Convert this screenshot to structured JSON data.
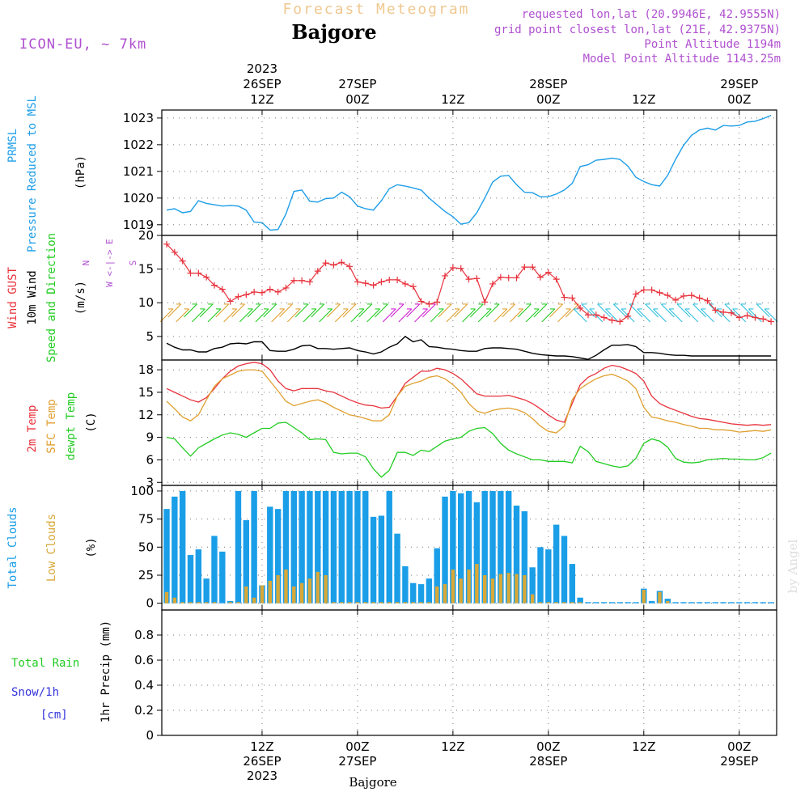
{
  "header": {
    "title": "Forecast Meteogram",
    "place": "Bajgore",
    "model": "ICON-EU, ~ 7km",
    "requested": "requested lon,lat (20.9946E, 42.9555N)",
    "grid_point": "grid point closest lon,lat (21E, 42.9375N)",
    "point_alt": "Point Altitude 1194m",
    "model_alt": "Model Point Altitude 1143.25m",
    "footer_place": "Bajgore",
    "watermark": "by Angel"
  },
  "colors": {
    "pressure": "#1e9ee8",
    "gust": "#e8323c",
    "wind": "#000000",
    "temp2m": "#e8323c",
    "sfc_temp": "#e0a030",
    "dewpoint": "#22cc22",
    "total_clouds": "#1a9ee8",
    "low_clouds": "#d8a838",
    "rain": "#22cc22",
    "snow": "#3333dd",
    "title": "#f0c890",
    "meta": "#b050d0"
  },
  "time_axis": {
    "top_labels": [
      {
        "t": 12,
        "lines": [
          "2023",
          "26SEP",
          "12Z"
        ]
      },
      {
        "t": 24,
        "lines": [
          "27SEP",
          "00Z"
        ]
      },
      {
        "t": 36,
        "lines": [
          "12Z"
        ]
      },
      {
        "t": 48,
        "lines": [
          "28SEP",
          "00Z"
        ]
      },
      {
        "t": 60,
        "lines": [
          "12Z"
        ]
      },
      {
        "t": 72,
        "lines": [
          "29SEP",
          "00Z"
        ]
      }
    ],
    "bottom_labels": [
      {
        "t": 12,
        "lines": [
          "12Z",
          "26SEP",
          "2023"
        ]
      },
      {
        "t": 24,
        "lines": [
          "00Z",
          "27SEP"
        ]
      },
      {
        "t": 36,
        "lines": [
          "12Z"
        ]
      },
      {
        "t": 48,
        "lines": [
          "00Z",
          "28SEP"
        ]
      },
      {
        "t": 60,
        "lines": [
          "12Z"
        ]
      },
      {
        "t": 72,
        "lines": [
          "00Z",
          "29SEP"
        ]
      }
    ],
    "start": "26SEP2023 00Z",
    "range_hours": [
      0,
      77
    ]
  },
  "panels": {
    "pressure": {
      "labels": [
        "PRMSL",
        "Pressure Reduced to MSL"
      ],
      "unit": "(hPa)",
      "ticks": [
        1019,
        1020,
        1021,
        1022,
        1023
      ]
    },
    "wind": {
      "labels": [
        "Wind GUST",
        "10m Wind",
        "Speed and Direction"
      ],
      "unit": "(m/s)",
      "ticks": [
        5,
        10,
        15,
        20
      ],
      "compass": [
        "N",
        "W <-|-> E",
        "S"
      ]
    },
    "temp": {
      "labels": [
        "2m Temp",
        "SFC Temp",
        "dewpt Temp"
      ],
      "unit": "(C)",
      "ticks": [
        3,
        6,
        9,
        12,
        15,
        18
      ]
    },
    "clouds": {
      "labels": [
        "Total Clouds",
        "Low Clouds"
      ],
      "unit": "(%)",
      "ticks": [
        0,
        25,
        50,
        75,
        100
      ]
    },
    "precip": {
      "labels": [
        "Total Rain",
        "Snow/1h",
        "[cm]"
      ],
      "ylabel": "1hr Precip (mm)",
      "ticks": [
        "0",
        "0.2",
        "0.4",
        "0.6",
        "0.8"
      ]
    }
  },
  "chart_data": [
    {
      "type": "line",
      "title": "PRMSL Pressure Reduced to MSL",
      "ylabel": "(hPa)",
      "ylim": [
        1018.6,
        1023.3
      ],
      "x": [
        0,
        1,
        2,
        3,
        4,
        5,
        6,
        7,
        8,
        9,
        10,
        11,
        12,
        13,
        14,
        15,
        16,
        17,
        18,
        19,
        20,
        21,
        22,
        23,
        24,
        25,
        26,
        27,
        28,
        29,
        30,
        31,
        32,
        33,
        34,
        35,
        36,
        37,
        38,
        39,
        40,
        41,
        42,
        43,
        44,
        45,
        46,
        47,
        48,
        49,
        50,
        51,
        52,
        53,
        54,
        55,
        56,
        57,
        58,
        59,
        60,
        61,
        62,
        63,
        64,
        65,
        66,
        67,
        68,
        69,
        70,
        71,
        72,
        73,
        74,
        75,
        76
      ],
      "series": [
        {
          "name": "PRMSL",
          "values": [
            1019.55,
            1019.6,
            1019.45,
            1019.5,
            1019.9,
            1019.8,
            1019.75,
            1019.7,
            1019.72,
            1019.7,
            1019.55,
            1019.1,
            1019.08,
            1018.8,
            1018.82,
            1019.4,
            1020.25,
            1020.3,
            1019.88,
            1019.85,
            1019.98,
            1020.0,
            1020.22,
            1020.05,
            1019.7,
            1019.6,
            1019.55,
            1019.9,
            1020.35,
            1020.5,
            1020.45,
            1020.38,
            1020.3,
            1020.0,
            1019.75,
            1019.5,
            1019.3,
            1019.02,
            1019.08,
            1019.45,
            1020.0,
            1020.6,
            1020.82,
            1020.85,
            1020.5,
            1020.22,
            1020.2,
            1020.05,
            1020.05,
            1020.15,
            1020.3,
            1020.55,
            1021.18,
            1021.25,
            1021.42,
            1021.45,
            1021.5,
            1021.45,
            1021.2,
            1020.78,
            1020.62,
            1020.5,
            1020.45,
            1020.85,
            1021.45,
            1021.98,
            1022.35,
            1022.55,
            1022.62,
            1022.55,
            1022.72,
            1022.7,
            1022.72,
            1022.85,
            1022.88,
            1022.98,
            1023.1
          ]
        }
      ]
    },
    {
      "type": "line",
      "title": "Wind GUST / 10m Wind Speed and Direction",
      "ylabel": "(m/s)",
      "ylim": [
        1.5,
        20
      ],
      "x": [
        0,
        1,
        2,
        3,
        4,
        5,
        6,
        7,
        8,
        9,
        10,
        11,
        12,
        13,
        14,
        15,
        16,
        17,
        18,
        19,
        20,
        21,
        22,
        23,
        24,
        25,
        26,
        27,
        28,
        29,
        30,
        31,
        32,
        33,
        34,
        35,
        36,
        37,
        38,
        39,
        40,
        41,
        42,
        43,
        44,
        45,
        46,
        47,
        48,
        49,
        50,
        51,
        52,
        53,
        54,
        55,
        56,
        57,
        58,
        59,
        60,
        61,
        62,
        63,
        64,
        65,
        66,
        67,
        68,
        69,
        70,
        71,
        72,
        73,
        74,
        75,
        76
      ],
      "series": [
        {
          "name": "Wind GUST",
          "values": [
            18.7,
            17.5,
            16.2,
            14.4,
            14.4,
            13.8,
            12.6,
            12.0,
            10.2,
            10.9,
            11.2,
            11.6,
            11.5,
            12.0,
            11.6,
            12.2,
            13.3,
            13.3,
            13.1,
            14.7,
            15.9,
            15.6,
            16.0,
            15.4,
            13.1,
            12.9,
            12.6,
            13.1,
            13.4,
            13.4,
            12.8,
            12.4,
            10.2,
            9.8,
            10.1,
            14.0,
            15.2,
            15.1,
            13.5,
            13.6,
            10.1,
            12.8,
            13.8,
            13.7,
            13.7,
            15.3,
            15.3,
            13.8,
            14.5,
            13.5,
            10.8,
            10.7,
            9.2,
            8.2,
            8.2,
            7.8,
            7.4,
            7.2,
            8.0,
            11.3,
            11.9,
            11.9,
            11.5,
            11.1,
            10.4,
            11.0,
            11.1,
            10.7,
            10.3,
            8.9,
            8.6,
            8.5,
            7.8,
            8.1,
            7.8,
            7.6,
            7.2
          ]
        },
        {
          "name": "10m Wind",
          "values": [
            4.0,
            3.4,
            3.0,
            3.0,
            2.7,
            2.7,
            3.2,
            3.4,
            3.9,
            4.0,
            3.9,
            4.2,
            4.2,
            2.9,
            2.8,
            2.8,
            3.1,
            3.6,
            3.7,
            3.2,
            3.2,
            3.1,
            3.2,
            3.3,
            2.9,
            2.7,
            2.4,
            2.7,
            3.4,
            3.9,
            5.0,
            4.2,
            4.5,
            3.5,
            3.4,
            3.2,
            3.1,
            2.9,
            2.8,
            2.8,
            3.2,
            3.3,
            3.3,
            3.2,
            3.1,
            2.8,
            2.5,
            2.3,
            2.2,
            2.1,
            2.1,
            2.0,
            1.8,
            1.6,
            2.2,
            3.0,
            3.7,
            3.7,
            3.8,
            3.5,
            2.6,
            2.6,
            2.5,
            2.3,
            2.2,
            2.2,
            2.1,
            2.1,
            2.1,
            2.1,
            2.1,
            2.1,
            2.1,
            2.1,
            2.1,
            2.1,
            2.1
          ]
        }
      ]
    },
    {
      "type": "line",
      "title": "2m Temp / SFC Temp / dewpt Temp",
      "ylabel": "(C)",
      "ylim": [
        2.6,
        19.3
      ],
      "x": [
        0,
        1,
        2,
        3,
        4,
        5,
        6,
        7,
        8,
        9,
        10,
        11,
        12,
        13,
        14,
        15,
        16,
        17,
        18,
        19,
        20,
        21,
        22,
        23,
        24,
        25,
        26,
        27,
        28,
        29,
        30,
        31,
        32,
        33,
        34,
        35,
        36,
        37,
        38,
        39,
        40,
        41,
        42,
        43,
        44,
        45,
        46,
        47,
        48,
        49,
        50,
        51,
        52,
        53,
        54,
        55,
        56,
        57,
        58,
        59,
        60,
        61,
        62,
        63,
        64,
        65,
        66,
        67,
        68,
        69,
        70,
        71,
        72,
        73,
        74,
        75,
        76
      ],
      "series": [
        {
          "name": "2m Temp",
          "values": [
            15.5,
            15.0,
            14.5,
            14.0,
            13.7,
            14.3,
            15.5,
            16.8,
            17.8,
            18.5,
            18.8,
            19.0,
            18.8,
            18.0,
            16.5,
            15.5,
            15.2,
            15.5,
            15.5,
            15.5,
            15.2,
            15.0,
            14.5,
            14.0,
            13.6,
            13.3,
            13.2,
            12.9,
            13.0,
            14.5,
            16.2,
            17.0,
            17.8,
            17.8,
            18.2,
            18.0,
            17.5,
            16.8,
            15.8,
            14.8,
            14.5,
            14.5,
            14.5,
            14.6,
            14.3,
            14.0,
            13.5,
            12.8,
            12.0,
            11.3,
            11.0,
            13.5,
            16.0,
            17.0,
            17.5,
            18.2,
            18.6,
            18.4,
            18.0,
            17.5,
            16.5,
            14.5,
            13.5,
            13.0,
            12.6,
            12.2,
            11.8,
            11.5,
            11.4,
            11.2,
            11.0,
            10.8,
            10.7,
            10.6,
            10.7,
            10.6,
            10.7
          ]
        },
        {
          "name": "SFC Temp",
          "values": [
            13.8,
            12.8,
            11.7,
            11.2,
            12.0,
            14.0,
            15.8,
            16.8,
            17.3,
            17.8,
            18.0,
            18.0,
            17.8,
            16.5,
            15.2,
            13.8,
            13.2,
            13.5,
            13.8,
            14.0,
            13.6,
            13.0,
            12.5,
            12.0,
            11.8,
            11.5,
            11.2,
            11.2,
            12.0,
            14.5,
            15.8,
            16.2,
            16.5,
            17.0,
            17.2,
            16.8,
            16.0,
            15.0,
            13.5,
            12.5,
            12.2,
            12.6,
            12.8,
            12.9,
            12.7,
            12.3,
            11.5,
            10.5,
            9.8,
            9.6,
            10.5,
            14.0,
            15.5,
            16.2,
            16.8,
            17.2,
            17.4,
            17.0,
            16.5,
            15.5,
            13.0,
            11.7,
            11.5,
            11.2,
            11.0,
            10.7,
            10.5,
            10.2,
            10.2,
            10.0,
            10.0,
            9.9,
            9.7,
            9.8,
            9.9,
            9.8,
            10.0
          ]
        },
        {
          "name": "dewpt Temp",
          "values": [
            9.0,
            8.8,
            7.6,
            6.5,
            7.6,
            8.2,
            8.8,
            9.3,
            9.6,
            9.4,
            9.0,
            9.6,
            10.2,
            10.2,
            10.9,
            11.0,
            10.3,
            9.6,
            8.7,
            8.8,
            8.7,
            7.0,
            6.8,
            6.9,
            6.9,
            6.4,
            4.8,
            3.7,
            4.6,
            7.0,
            7.0,
            6.6,
            7.3,
            7.1,
            7.8,
            8.5,
            8.8,
            9.0,
            9.8,
            10.2,
            10.3,
            9.5,
            8.2,
            7.3,
            6.8,
            6.4,
            6.0,
            6.0,
            5.8,
            5.8,
            5.8,
            5.6,
            7.8,
            7.1,
            5.8,
            5.5,
            5.2,
            5.0,
            5.2,
            6.2,
            8.2,
            8.8,
            8.5,
            7.7,
            6.2,
            5.7,
            5.6,
            5.7,
            6.0,
            6.1,
            6.2,
            6.1,
            6.1,
            6.0,
            6.0,
            6.3,
            6.9
          ]
        }
      ]
    },
    {
      "type": "bar",
      "title": "Total Clouds / Low Clouds",
      "ylabel": "(%)",
      "ylim": [
        -6,
        105
      ],
      "x": [
        0,
        1,
        2,
        3,
        4,
        5,
        6,
        7,
        8,
        9,
        10,
        11,
        12,
        13,
        14,
        15,
        16,
        17,
        18,
        19,
        20,
        21,
        22,
        23,
        24,
        25,
        26,
        27,
        28,
        29,
        30,
        31,
        32,
        33,
        34,
        35,
        36,
        37,
        38,
        39,
        40,
        41,
        42,
        43,
        44,
        45,
        46,
        47,
        48,
        49,
        50,
        51,
        52,
        53,
        54,
        55,
        56,
        57,
        58,
        59,
        60,
        61,
        62,
        63,
        64,
        65,
        66,
        67,
        68,
        69,
        70,
        71,
        72,
        73,
        74,
        75,
        76
      ],
      "series": [
        {
          "name": "Total Clouds",
          "values": [
            84,
            95,
            100,
            43,
            48,
            22,
            60,
            46,
            2,
            100,
            74,
            100,
            16,
            86,
            84,
            100,
            100,
            100,
            100,
            100,
            100,
            100,
            100,
            100,
            100,
            100,
            77,
            78,
            100,
            62,
            33,
            18,
            17,
            22,
            49,
            95,
            100,
            98,
            100,
            90,
            100,
            100,
            100,
            100,
            87,
            82,
            32,
            50,
            48,
            70,
            60,
            35,
            5,
            1,
            1,
            1,
            1,
            1,
            1,
            1,
            13,
            2,
            11,
            4,
            1,
            1,
            1,
            1,
            1,
            1,
            1,
            1,
            1,
            1,
            1,
            1,
            1
          ]
        },
        {
          "name": "Low Clouds",
          "values": [
            10,
            5,
            1,
            1,
            1,
            1,
            1,
            0,
            1,
            1,
            15,
            5,
            16,
            20,
            25,
            30,
            15,
            18,
            22,
            28,
            25,
            1,
            1,
            1,
            1,
            1,
            1,
            1,
            1,
            1,
            1,
            1,
            1,
            1,
            15,
            17,
            30,
            22,
            30,
            35,
            25,
            22,
            26,
            27,
            26,
            25,
            8,
            1,
            1,
            1,
            1,
            1,
            1,
            0,
            0,
            0,
            0,
            0,
            0,
            0,
            12,
            0,
            10,
            2,
            0,
            0,
            0,
            0,
            0,
            0,
            0,
            0,
            0,
            0,
            0,
            0,
            0
          ]
        }
      ]
    },
    {
      "type": "line",
      "title": "1hr Precip (mm)",
      "ylabel": "1hr Precip (mm)",
      "ylim": [
        0,
        1
      ],
      "x": [
        0,
        76
      ],
      "series": [
        {
          "name": "Total Rain",
          "values": [
            0,
            0
          ]
        }
      ]
    }
  ]
}
